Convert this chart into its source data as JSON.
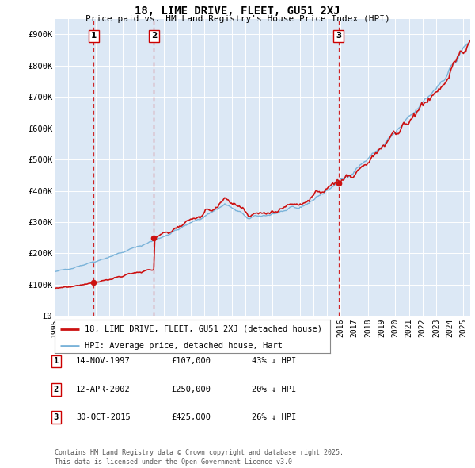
{
  "title": "18, LIME DRIVE, FLEET, GU51 2XJ",
  "subtitle": "Price paid vs. HM Land Registry's House Price Index (HPI)",
  "hpi_color": "#7ab3d9",
  "price_color": "#cc1111",
  "vline_color": "#cc0000",
  "plot_bg": "#dce8f5",
  "ylim": [
    0,
    950000
  ],
  "yticks": [
    0,
    100000,
    200000,
    300000,
    400000,
    500000,
    600000,
    700000,
    800000,
    900000
  ],
  "ytick_labels": [
    "£0",
    "£100K",
    "£200K",
    "£300K",
    "£400K",
    "£500K",
    "£600K",
    "£700K",
    "£800K",
    "£900K"
  ],
  "transactions": [
    {
      "date": 1997.87,
      "price": 107000,
      "label": "1"
    },
    {
      "date": 2002.28,
      "price": 250000,
      "label": "2"
    },
    {
      "date": 2015.83,
      "price": 425000,
      "label": "3"
    }
  ],
  "legend_house": "18, LIME DRIVE, FLEET, GU51 2XJ (detached house)",
  "legend_hpi": "HPI: Average price, detached house, Hart",
  "table_rows": [
    {
      "num": "1",
      "date": "14-NOV-1997",
      "price": "£107,000",
      "pct": "43% ↓ HPI"
    },
    {
      "num": "2",
      "date": "12-APR-2002",
      "price": "£250,000",
      "pct": "20% ↓ HPI"
    },
    {
      "num": "3",
      "date": "30-OCT-2015",
      "price": "£425,000",
      "pct": "26% ↓ HPI"
    }
  ],
  "footer": "Contains HM Land Registry data © Crown copyright and database right 2025.\nThis data is licensed under the Open Government Licence v3.0."
}
